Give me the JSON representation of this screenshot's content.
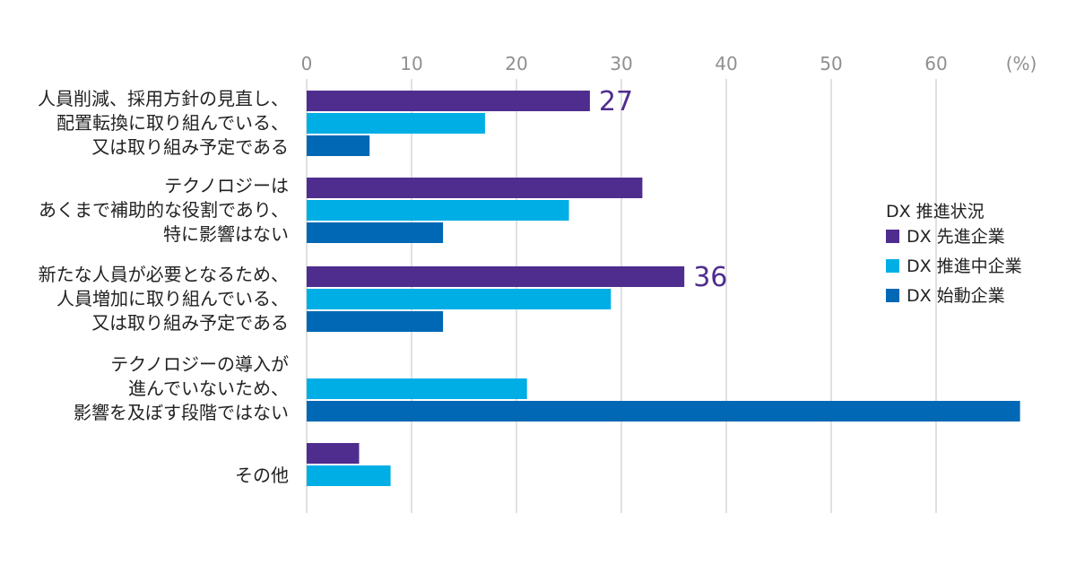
{
  "chart_data": {
    "type": "bar",
    "orientation": "horizontal",
    "unit_label": "(%)",
    "xlim": [
      0,
      68
    ],
    "xticks": [
      0,
      10,
      20,
      30,
      40,
      50,
      60
    ],
    "grid": true,
    "categories": [
      [
        "人員削減、採用方針の見直し、",
        "配置転換に取り組んでいる、",
        "又は取り組み予定である"
      ],
      [
        "テクノロジーは",
        "あくまで補助的な役割であり、",
        "特に影響はない"
      ],
      [
        "新たな人員が必要となるため、",
        "人員増加に取り組んでいる、",
        "又は取り組み予定である"
      ],
      [
        "テクノロジーの導入が",
        "進んでいないため、",
        "影響を及ぼす段階ではない"
      ],
      [
        "その他"
      ]
    ],
    "series": [
      {
        "name": "DX 先進企業",
        "color": "#4f2d8f",
        "values": [
          27,
          32,
          36,
          null,
          5
        ]
      },
      {
        "name": "DX 推進中企業",
        "color": "#00aee6",
        "values": [
          17,
          25,
          29,
          21,
          8
        ]
      },
      {
        "name": "DX 始動企業",
        "color": "#0068b4",
        "values": [
          6,
          13,
          13,
          68,
          null
        ]
      }
    ],
    "data_labels": [
      {
        "series": 0,
        "category": 0,
        "text": "27"
      },
      {
        "series": 0,
        "category": 2,
        "text": "36"
      }
    ],
    "legend": {
      "title": "DX 推進状況",
      "position": "right"
    },
    "data_label_color": "#4f2d8f",
    "grid_color": "#cccccc",
    "axis_text_color": "#8f8f8f"
  }
}
